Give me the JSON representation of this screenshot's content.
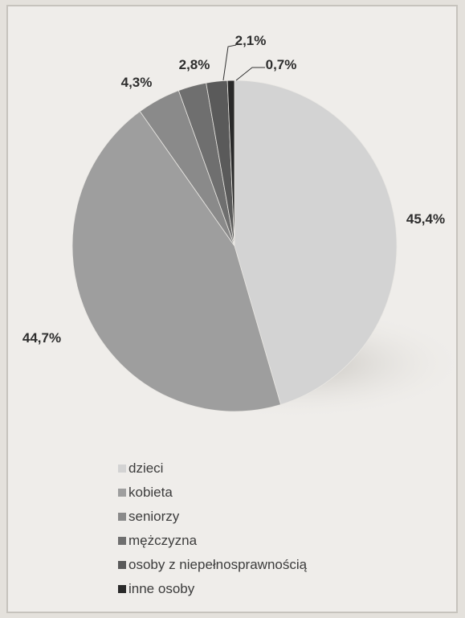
{
  "chart_data": {
    "type": "pie",
    "categories": [
      "dzieci",
      "kobieta",
      "seniorzy",
      "mężczyzna",
      "osoby z niepełnosprawnością",
      "inne osoby"
    ],
    "values": [
      45.4,
      44.7,
      4.3,
      2.8,
      2.1,
      0.7
    ],
    "data_labels": [
      "45,4%",
      "44,7%",
      "4,3%",
      "2,8%",
      "2,1%",
      "0,7%"
    ],
    "colors": [
      "#d3d3d3",
      "#9e9e9e",
      "#8a8a8a",
      "#6f6f6f",
      "#5a5a5a",
      "#2a2a2a"
    ],
    "legend_position": "bottom",
    "start_angle": "12 o'clock",
    "direction": "clockwise"
  }
}
